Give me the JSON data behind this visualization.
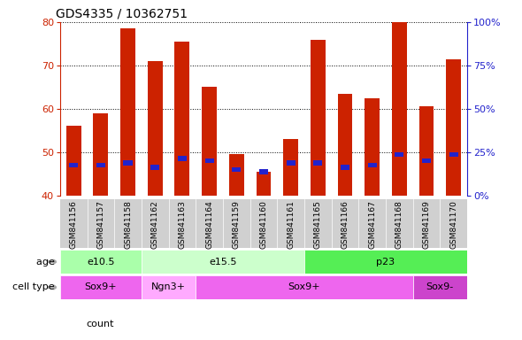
{
  "title": "GDS4335 / 10362751",
  "samples": [
    "GSM841156",
    "GSM841157",
    "GSM841158",
    "GSM841162",
    "GSM841163",
    "GSM841164",
    "GSM841159",
    "GSM841160",
    "GSM841161",
    "GSM841165",
    "GSM841166",
    "GSM841167",
    "GSM841168",
    "GSM841169",
    "GSM841170"
  ],
  "counts": [
    56.0,
    59.0,
    78.5,
    71.0,
    75.5,
    65.0,
    49.5,
    45.5,
    53.0,
    76.0,
    63.5,
    62.5,
    80.0,
    60.5,
    71.5
  ],
  "percentile_ranks": [
    47.0,
    47.0,
    47.5,
    46.5,
    48.5,
    48.0,
    46.0,
    45.5,
    47.5,
    47.5,
    46.5,
    47.0,
    49.5,
    48.0,
    49.5
  ],
  "ylim_left": [
    40,
    80
  ],
  "ylim_right": [
    0,
    100
  ],
  "yticks_left": [
    40,
    50,
    60,
    70,
    80
  ],
  "yticks_right": [
    0,
    25,
    50,
    75,
    100
  ],
  "ytick_labels_right": [
    "0%",
    "25%",
    "50%",
    "75%",
    "100%"
  ],
  "bar_color": "#cc2200",
  "percentile_color": "#2222cc",
  "background_color": "#ffffff",
  "age_groups": [
    {
      "label": "e10.5",
      "start": 0,
      "end": 3,
      "color": "#aaffaa"
    },
    {
      "label": "e15.5",
      "start": 3,
      "end": 9,
      "color": "#ccffcc"
    },
    {
      "label": "p23",
      "start": 9,
      "end": 15,
      "color": "#55ee55"
    }
  ],
  "cell_type_groups": [
    {
      "label": "Sox9+",
      "start": 0,
      "end": 3,
      "color": "#ee66ee"
    },
    {
      "label": "Ngn3+",
      "start": 3,
      "end": 5,
      "color": "#ffaaff"
    },
    {
      "label": "Sox9+",
      "start": 5,
      "end": 13,
      "color": "#ee66ee"
    },
    {
      "label": "Sox9-",
      "start": 13,
      "end": 15,
      "color": "#cc44cc"
    }
  ],
  "tick_label_color_left": "#cc2200",
  "tick_label_color_right": "#2222cc",
  "bar_width": 0.55,
  "xaxis_label_fontsize": 6.5,
  "yaxis_fontsize": 8,
  "title_fontsize": 10
}
